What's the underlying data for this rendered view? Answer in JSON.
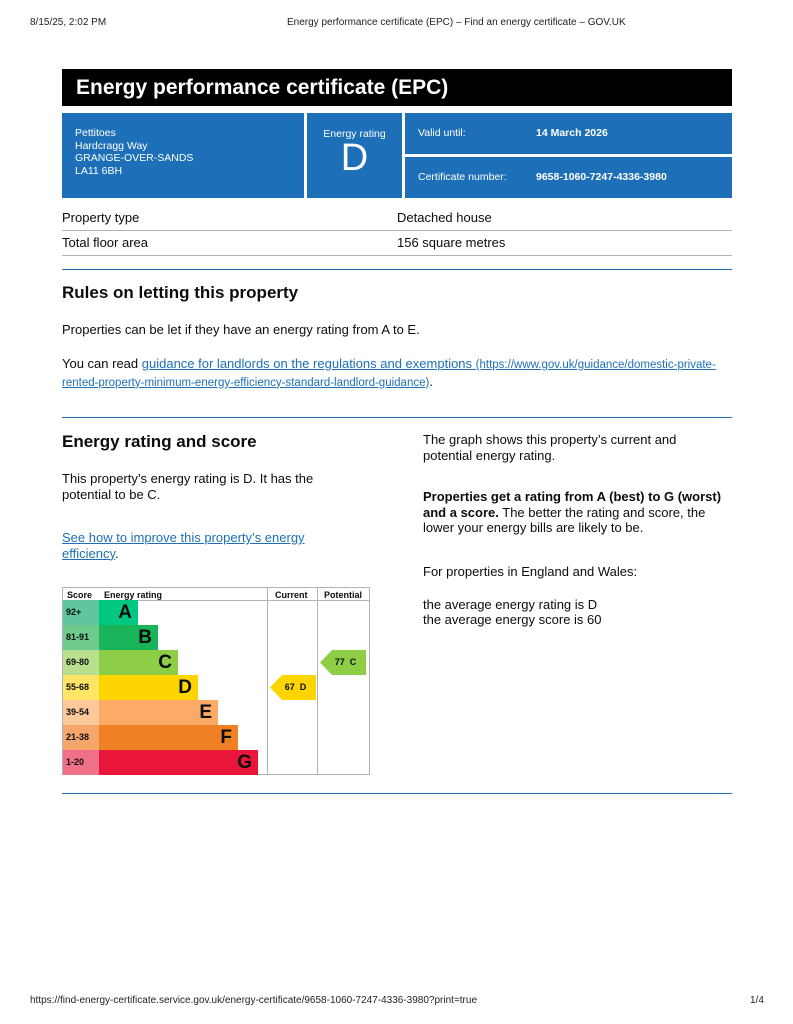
{
  "browser": {
    "datetime": "8/15/25, 2:02 PM",
    "page_title": "Energy performance certificate (EPC) – Find an energy certificate – GOV.UK",
    "url": "https://find-energy-certificate.service.gov.uk/energy-certificate/9658-1060-7247-4336-3980?print=true",
    "page": "1/4"
  },
  "title": "Energy performance certificate (EPC)",
  "address": [
    "Pettitoes",
    "Hardcragg Way",
    "GRANGE-OVER-SANDS",
    "LA11 6BH"
  ],
  "energy_rating": {
    "label": "Energy rating",
    "value": "D"
  },
  "valid": {
    "label": "Valid until:",
    "value": "14 March 2026"
  },
  "certificate": {
    "label": "Certificate number:",
    "value": "9658-1060-7247-4336-3980"
  },
  "property": [
    {
      "label": "Property type",
      "value": "Detached house"
    },
    {
      "label": "Total floor area",
      "value": "156 square metres"
    }
  ],
  "rules": {
    "heading": "Rules on letting this property",
    "p1": "Properties can be let if they have an energy rating from A to E.",
    "p2_prefix": "You can read ",
    "link": "guidance for landlords on the regulations and exemptions",
    "link_url": "(https://www.gov.uk/guidance/domestic-private-rented-property-minimum-energy-efficiency-standard-landlord-guidance)",
    "p2_suffix": "."
  },
  "score": {
    "heading": "Energy rating and score",
    "p1": "This property’s energy rating is D. It has the potential to be C.",
    "link": "See how to improve this property’s energy efficiency",
    "link_suffix": ".",
    "right_p1": "The graph shows this property’s current and potential energy rating.",
    "right_bold": "Properties get a rating from A (best) to G (worst) and a score.",
    "right_p2": " The better the rating and score, the lower your energy bills are likely to be.",
    "right_p3": "For properties in England and Wales:",
    "avg_rating": "the average energy rating is D",
    "avg_score": "the average energy score is 60"
  },
  "chart_data": {
    "type": "bar",
    "headers": [
      "Score",
      "Energy rating",
      "Current",
      "Potential"
    ],
    "bands": [
      {
        "letter": "A",
        "range": "92+",
        "color": "#00c781",
        "light": "#5fc6a0"
      },
      {
        "letter": "B",
        "range": "81-91",
        "color": "#19b459",
        "light": "#6ecb8d"
      },
      {
        "letter": "C",
        "range": "69-80",
        "color": "#8dce46",
        "light": "#b9e08f"
      },
      {
        "letter": "D",
        "range": "55-68",
        "color": "#ffd500",
        "light": "#ffe566"
      },
      {
        "letter": "E",
        "range": "39-54",
        "color": "#fcaa65",
        "light": "#fdc89a"
      },
      {
        "letter": "F",
        "range": "21-38",
        "color": "#ef8023",
        "light": "#f4a66b"
      },
      {
        "letter": "G",
        "range": "1-20",
        "color": "#e9153b",
        "light": "#f07088"
      }
    ],
    "current": {
      "score": "67",
      "letter": "D"
    },
    "potential": {
      "score": "77",
      "letter": "C"
    }
  }
}
